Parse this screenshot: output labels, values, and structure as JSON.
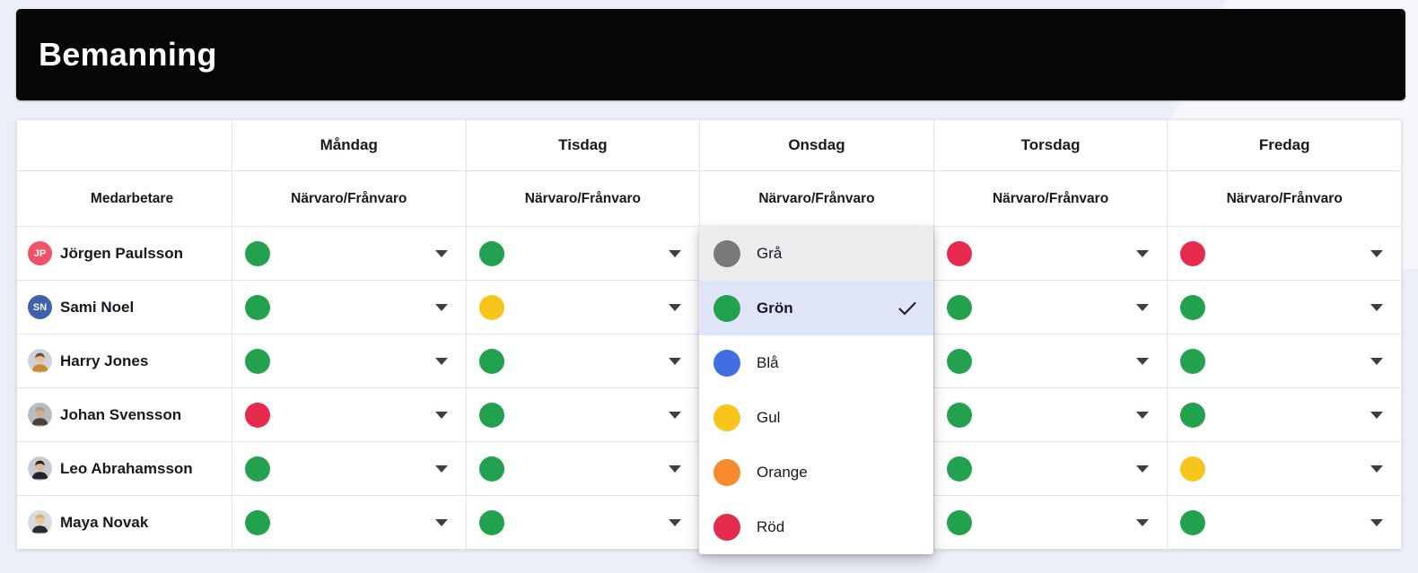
{
  "page": {
    "title": "Bemanning"
  },
  "table": {
    "employee_header": "Medarbetare",
    "sub_header": "Närvaro/Frånvaro",
    "days": [
      {
        "label": "Måndag",
        "slug": "monday"
      },
      {
        "label": "Tisdag",
        "slug": "tuesday"
      },
      {
        "label": "Onsdag",
        "slug": "wednesday"
      },
      {
        "label": "Torsdag",
        "slug": "thursday"
      },
      {
        "label": "Fredag",
        "slug": "friday"
      }
    ],
    "rows": [
      {
        "name": "Jörgen Paulsson",
        "avatar": {
          "type": "initials",
          "initials": "JP",
          "bg": "#ef5368"
        },
        "statuses": [
          "green",
          "green",
          null,
          "red",
          "red"
        ]
      },
      {
        "name": "Sami Noel",
        "avatar": {
          "type": "initials",
          "initials": "SN",
          "bg": "#3e61ac"
        },
        "statuses": [
          "green",
          "yellow",
          null,
          "green",
          "green"
        ]
      },
      {
        "name": "Harry Jones",
        "avatar": {
          "type": "photo",
          "bg": "#ccd3da",
          "hair": "#744f2e",
          "skin": "#ecbd96",
          "shirt": "#cf8a2d"
        },
        "statuses": [
          "green",
          "green",
          null,
          "green",
          "green"
        ]
      },
      {
        "name": "Johan Svensson",
        "avatar": {
          "type": "photo",
          "bg": "#b7bbc2",
          "hair": "#9b9da0",
          "skin": "#d8ab85",
          "shirt": "#4e4238"
        },
        "statuses": [
          "red",
          "green",
          null,
          "green",
          "green"
        ]
      },
      {
        "name": "Leo Abrahamsson",
        "avatar": {
          "type": "photo",
          "bg": "#c6cbd3",
          "hair": "#292624",
          "skin": "#e2b68e",
          "shirt": "#22242b"
        },
        "statuses": [
          "green",
          "green",
          null,
          "green",
          "yellow"
        ]
      },
      {
        "name": "Maya Novak",
        "avatar": {
          "type": "photo",
          "bg": "#d7dadf",
          "hair": "#d6b167",
          "skin": "#eec49d",
          "shirt": "#2b2d35"
        },
        "statuses": [
          "green",
          "green",
          null,
          "green",
          "green"
        ]
      }
    ]
  },
  "status_colors": {
    "gray": "#797979",
    "green": "#22a24e",
    "blue": "#4070e0",
    "yellow": "#f8c51d",
    "orange": "#f78b2f",
    "red": "#e62b4e"
  },
  "dropdown": {
    "open_for_day": "Onsdag",
    "selected": "Grön",
    "options": [
      {
        "label": "Grå",
        "slug": "gra",
        "color_key": "gray",
        "state": "hover"
      },
      {
        "label": "Grön",
        "slug": "gron",
        "color_key": "green",
        "state": "selected"
      },
      {
        "label": "Blå",
        "slug": "bla",
        "color_key": "blue",
        "state": ""
      },
      {
        "label": "Gul",
        "slug": "gul",
        "color_key": "yellow",
        "state": ""
      },
      {
        "label": "Orange",
        "slug": "orange",
        "color_key": "orange",
        "state": ""
      },
      {
        "label": "Röd",
        "slug": "rod",
        "color_key": "red",
        "state": ""
      }
    ]
  }
}
